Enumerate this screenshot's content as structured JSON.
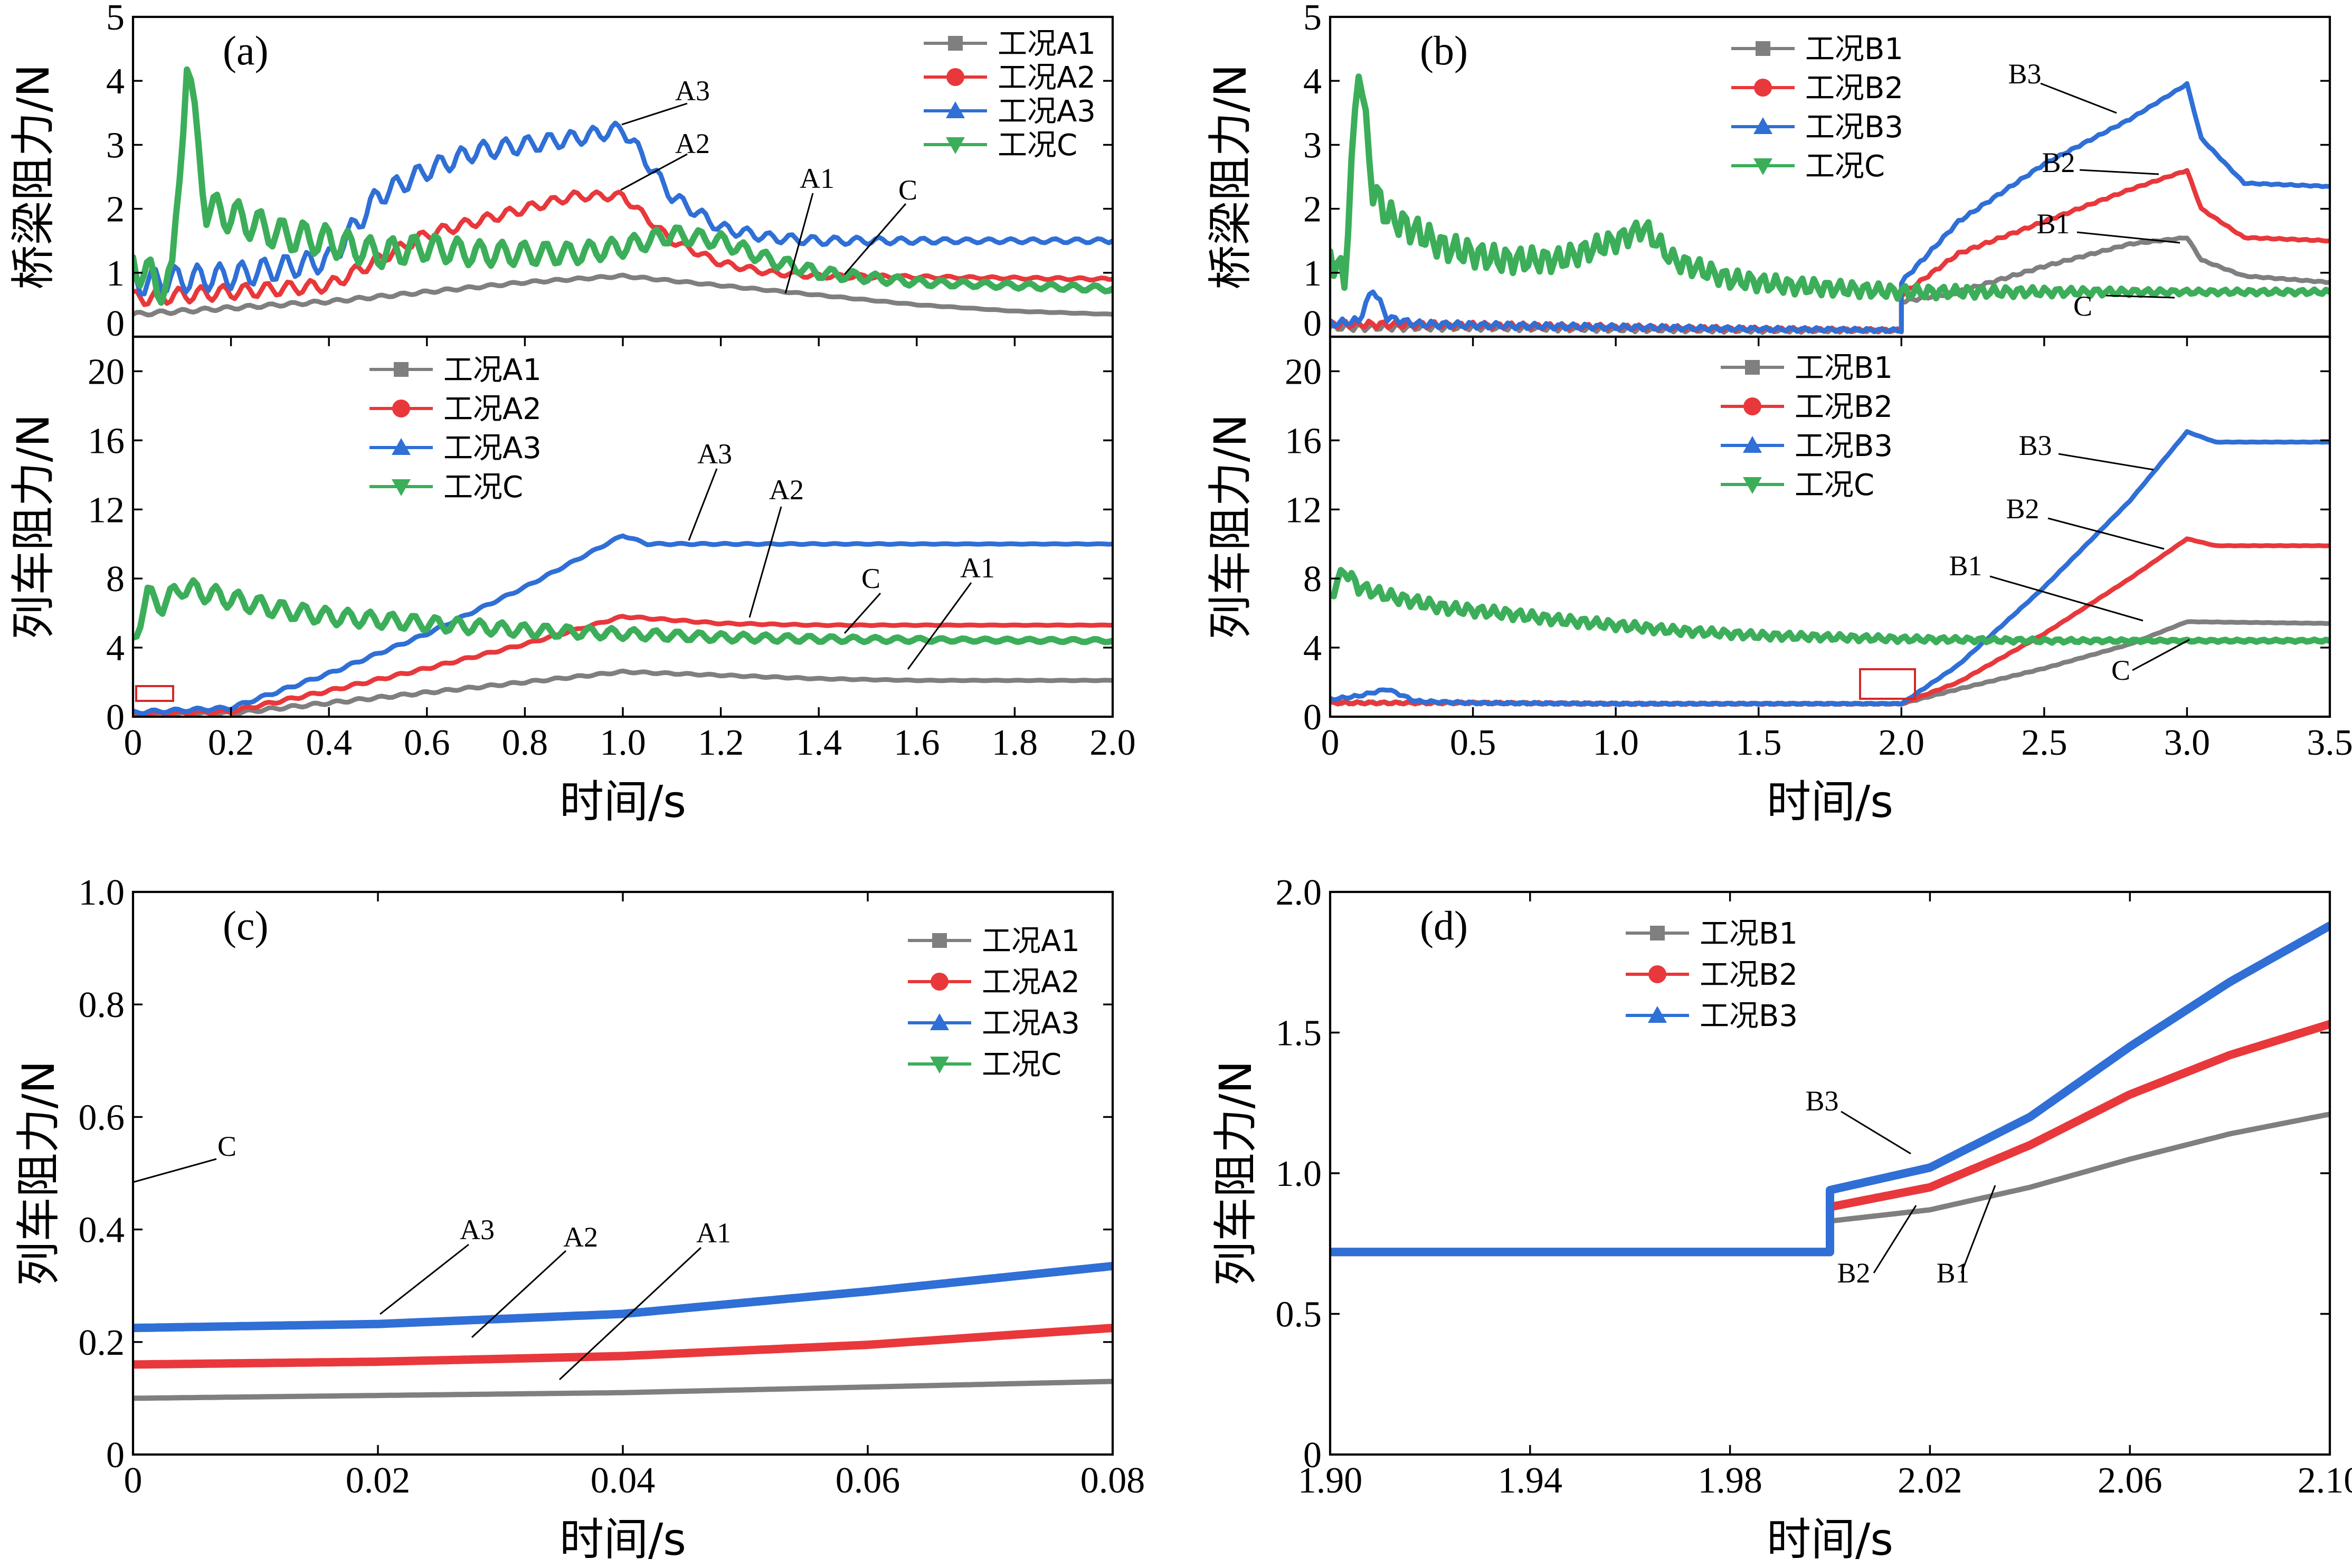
{
  "colors": {
    "A1": "#7f7f7f",
    "A2": "#e8383b",
    "A3": "#2f6fd6",
    "C": "#3cae5a",
    "B1": "#7f7f7f",
    "B2": "#e8383b",
    "B3": "#2f6fd6",
    "zoom_box": "#d62728"
  },
  "chart_data": [
    {
      "id": "a-top",
      "panel_label": "(a)",
      "type": "line",
      "ylabel": "桥梁阻力/N",
      "xlabel": "",
      "xlim": [
        0,
        2.0
      ],
      "ylim": [
        0,
        5
      ],
      "xticks": [],
      "yticks": [
        0,
        1,
        2,
        3,
        4,
        5
      ],
      "legend": [
        "工况A1",
        "工况A2",
        "工况A3",
        "工况C"
      ],
      "legend_position": "top-right",
      "series": [
        {
          "name": "工况A1",
          "key": "A1",
          "x": [
            0,
            0.2,
            0.4,
            0.6,
            0.8,
            1.0,
            1.2,
            1.4,
            1.6,
            1.8,
            2.0
          ],
          "y": [
            0.35,
            0.45,
            0.55,
            0.7,
            0.85,
            0.95,
            0.8,
            0.65,
            0.5,
            0.4,
            0.35
          ]
        },
        {
          "name": "工况A2",
          "key": "A2",
          "x": [
            0,
            0.2,
            0.4,
            0.5,
            0.6,
            0.7,
            0.8,
            0.9,
            1.0,
            1.1,
            1.2,
            1.3,
            1.4,
            2.0
          ],
          "y": [
            0.6,
            0.7,
            0.8,
            1.2,
            1.6,
            1.8,
            2.0,
            2.2,
            2.2,
            1.5,
            1.15,
            1.0,
            0.95,
            0.9
          ]
        },
        {
          "name": "工况A3",
          "key": "A3",
          "x": [
            0,
            0.2,
            0.4,
            0.5,
            0.6,
            0.7,
            0.8,
            0.9,
            1.0,
            1.1,
            1.2,
            1.3,
            1.4,
            2.0
          ],
          "y": [
            0.85,
            0.95,
            1.2,
            2.2,
            2.6,
            2.9,
            3.0,
            3.1,
            3.25,
            2.2,
            1.7,
            1.55,
            1.5,
            1.5
          ]
        },
        {
          "name": "工况C",
          "key": "C",
          "x": [
            0,
            0.05,
            0.08,
            0.11,
            0.15,
            0.2,
            0.3,
            0.4,
            0.5,
            0.6,
            0.7,
            0.8,
            0.9,
            1.0,
            1.1,
            1.2,
            1.3,
            1.4,
            1.6,
            2.0
          ],
          "y": [
            1.2,
            0.8,
            0.9,
            4.3,
            2.0,
            1.9,
            1.6,
            1.5,
            1.3,
            1.4,
            1.3,
            1.3,
            1.3,
            1.4,
            1.6,
            1.5,
            1.2,
            1.0,
            0.85,
            0.75
          ]
        }
      ],
      "annotations": [
        {
          "text": "A3"
        },
        {
          "text": "A2"
        },
        {
          "text": "A1"
        },
        {
          "text": "C"
        }
      ]
    },
    {
      "id": "a-bottom",
      "panel_label": "",
      "type": "line",
      "ylabel": "列车阻力/N",
      "xlabel": "时间/s",
      "xlim": [
        0,
        2.0
      ],
      "ylim": [
        0,
        22
      ],
      "xticks": [
        "0",
        "0.2",
        "0.4",
        "0.6",
        "0.8",
        "1.0",
        "1.2",
        "1.4",
        "1.6",
        "1.8",
        "2.0"
      ],
      "yticks": [
        0,
        4,
        8,
        12,
        16,
        20
      ],
      "legend": [
        "工况A1",
        "工况A2",
        "工况A3",
        "工况C"
      ],
      "legend_position": "top-left",
      "zoom_region": {
        "x": [
          0,
          0.08
        ],
        "y": [
          0,
          1.0
        ]
      },
      "series": [
        {
          "name": "工况A1",
          "key": "A1",
          "x": [
            0,
            0.2,
            0.4,
            0.6,
            0.8,
            1.0,
            1.2,
            1.4,
            1.6,
            2.0
          ],
          "y": [
            0.1,
            0.2,
            0.8,
            1.4,
            2.0,
            2.6,
            2.4,
            2.2,
            2.1,
            2.1
          ]
        },
        {
          "name": "工况A2",
          "key": "A2",
          "x": [
            0,
            0.2,
            0.4,
            0.6,
            0.8,
            1.0,
            1.2,
            1.4,
            2.0
          ],
          "y": [
            0.15,
            0.3,
            1.5,
            2.8,
            4.2,
            5.8,
            5.4,
            5.3,
            5.3
          ]
        },
        {
          "name": "工况A3",
          "key": "A3",
          "x": [
            0,
            0.2,
            0.4,
            0.6,
            0.8,
            1.0,
            1.05,
            1.2,
            1.4,
            2.0
          ],
          "y": [
            0.25,
            0.5,
            2.5,
            4.8,
            7.5,
            10.5,
            10.0,
            10.0,
            10.0,
            10.0
          ]
        },
        {
          "name": "工况C",
          "key": "C",
          "x": [
            0,
            0.03,
            0.06,
            0.1,
            0.2,
            0.3,
            0.4,
            0.6,
            0.8,
            1.0,
            1.2,
            1.4,
            1.6,
            2.0
          ],
          "y": [
            4.5,
            7.0,
            6.5,
            7.5,
            6.8,
            6.2,
            5.8,
            5.4,
            5.0,
            4.8,
            4.6,
            4.5,
            4.45,
            4.4
          ]
        }
      ],
      "annotations": [
        {
          "text": "A3"
        },
        {
          "text": "A2"
        },
        {
          "text": "C"
        },
        {
          "text": "A1"
        }
      ]
    },
    {
      "id": "b-top",
      "panel_label": "(b)",
      "type": "line",
      "ylabel": "桥梁阻力/N",
      "xlabel": "",
      "xlim": [
        0,
        3.5
      ],
      "ylim": [
        0,
        5
      ],
      "xticks": [],
      "yticks": [
        0,
        1,
        2,
        3,
        4,
        5
      ],
      "legend": [
        "工况B1",
        "工况B2",
        "工况B3",
        "工况C"
      ],
      "legend_position": "top-center",
      "series": [
        {
          "name": "工况B1",
          "key": "B1",
          "x": [
            0,
            0.5,
            1.0,
            1.5,
            2.0,
            2.0,
            2.2,
            2.5,
            2.8,
            3.0,
            3.05,
            3.2,
            3.5
          ],
          "y": [
            0.15,
            0.15,
            0.12,
            0.1,
            0.1,
            0.55,
            0.7,
            1.1,
            1.45,
            1.55,
            1.2,
            0.95,
            0.85
          ]
        },
        {
          "name": "工况B2",
          "key": "B2",
          "x": [
            0,
            0.5,
            1.0,
            1.5,
            2.0,
            2.0,
            2.2,
            2.5,
            2.8,
            3.0,
            3.05,
            3.2,
            3.5
          ],
          "y": [
            0.2,
            0.18,
            0.15,
            0.12,
            0.1,
            0.65,
            1.3,
            1.8,
            2.3,
            2.6,
            2.0,
            1.55,
            1.5
          ]
        },
        {
          "name": "工况B3",
          "key": "B3",
          "x": [
            0,
            0.1,
            0.15,
            0.2,
            0.3,
            0.5,
            1.0,
            1.5,
            2.0,
            2.0,
            2.2,
            2.5,
            2.8,
            3.0,
            3.05,
            3.2,
            3.5
          ],
          "y": [
            0.2,
            0.25,
            0.75,
            0.3,
            0.2,
            0.18,
            0.15,
            0.12,
            0.1,
            0.85,
            1.8,
            2.7,
            3.4,
            3.95,
            3.1,
            2.4,
            2.35
          ]
        },
        {
          "name": "工况C",
          "key": "C",
          "x": [
            0,
            0.05,
            0.1,
            0.15,
            0.2,
            0.4,
            0.6,
            0.8,
            1.0,
            1.1,
            1.2,
            1.4,
            1.6,
            1.8,
            2.0,
            2.5,
            3.0,
            3.5
          ],
          "y": [
            1.3,
            0.9,
            4.3,
            2.3,
            1.9,
            1.4,
            1.2,
            1.2,
            1.5,
            1.7,
            1.2,
            0.9,
            0.8,
            0.75,
            0.7,
            0.7,
            0.7,
            0.7
          ]
        }
      ],
      "annotations": [
        {
          "text": "B3"
        },
        {
          "text": "B2"
        },
        {
          "text": "B1"
        },
        {
          "text": "C"
        }
      ]
    },
    {
      "id": "b-bottom",
      "panel_label": "",
      "type": "line",
      "ylabel": "列车阻力/N",
      "xlabel": "时间/s",
      "xlim": [
        0,
        3.5
      ],
      "ylim": [
        0,
        22
      ],
      "xticks": [
        "0",
        "0.5",
        "1.0",
        "1.5",
        "2.0",
        "2.5",
        "3.0",
        "3.5"
      ],
      "yticks": [
        0,
        4,
        8,
        12,
        16,
        20
      ],
      "legend": [
        "工况B1",
        "工况B2",
        "工况B3",
        "工况C"
      ],
      "legend_position": "top-center",
      "zoom_region": {
        "x": [
          1.9,
          2.1
        ],
        "y": [
          0,
          2.0
        ]
      },
      "series": [
        {
          "name": "工况B1",
          "key": "B1",
          "x": [
            0,
            0.5,
            1.0,
            1.5,
            2.0,
            2.2,
            2.5,
            2.8,
            3.0,
            3.5
          ],
          "y": [
            0.8,
            0.8,
            0.75,
            0.75,
            0.75,
            1.6,
            2.8,
            4.2,
            5.5,
            5.4
          ]
        },
        {
          "name": "工况B2",
          "key": "B2",
          "x": [
            0,
            0.5,
            1.0,
            1.5,
            2.0,
            2.2,
            2.5,
            2.8,
            3.0,
            3.1,
            3.5
          ],
          "y": [
            0.8,
            0.8,
            0.75,
            0.75,
            0.75,
            2.0,
            4.8,
            8.0,
            10.3,
            9.9,
            9.9
          ]
        },
        {
          "name": "工况B3",
          "key": "B3",
          "x": [
            0,
            0.1,
            0.2,
            0.3,
            0.5,
            1.0,
            1.5,
            2.0,
            2.2,
            2.5,
            2.8,
            3.0,
            3.1,
            3.5
          ],
          "y": [
            1.0,
            1.2,
            1.6,
            0.9,
            0.8,
            0.75,
            0.75,
            0.75,
            3.0,
            7.5,
            12.5,
            16.5,
            15.9,
            15.9
          ]
        },
        {
          "name": "工况C",
          "key": "C",
          "x": [
            0,
            0.05,
            0.1,
            0.2,
            0.4,
            0.6,
            0.8,
            1.0,
            1.2,
            1.5,
            2.0,
            2.5,
            3.0,
            3.5
          ],
          "y": [
            7.0,
            8.5,
            7.5,
            7.0,
            6.3,
            6.0,
            5.6,
            5.3,
            5.0,
            4.7,
            4.5,
            4.4,
            4.4,
            4.4
          ]
        }
      ],
      "annotations": [
        {
          "text": "B3"
        },
        {
          "text": "B2"
        },
        {
          "text": "B1"
        },
        {
          "text": "C"
        }
      ]
    },
    {
      "id": "c",
      "panel_label": "(c)",
      "type": "line",
      "ylabel": "列车阻力/N",
      "xlabel": "时间/s",
      "xlim": [
        0,
        0.08
      ],
      "ylim": [
        0,
        1.0
      ],
      "xticks": [
        "0",
        "0.02",
        "0.04",
        "0.06",
        "0.08"
      ],
      "yticks": [
        "0",
        "0.2",
        "0.4",
        "0.6",
        "0.8",
        "1.0"
      ],
      "legend": [
        "工况A1",
        "工况A2",
        "工况A3",
        "工况C"
      ],
      "legend_position": "top-right",
      "series": [
        {
          "name": "工况A1",
          "key": "A1",
          "x": [
            0,
            0.02,
            0.04,
            0.06,
            0.08
          ],
          "y": [
            0.1,
            0.105,
            0.11,
            0.12,
            0.13
          ]
        },
        {
          "name": "工况A2",
          "key": "A2",
          "x": [
            0,
            0.02,
            0.04,
            0.06,
            0.08
          ],
          "y": [
            0.16,
            0.165,
            0.175,
            0.195,
            0.225
          ]
        },
        {
          "name": "工况A3",
          "key": "A3",
          "x": [
            0,
            0.02,
            0.04,
            0.06,
            0.08
          ],
          "y": [
            0.225,
            0.232,
            0.25,
            0.29,
            0.335
          ]
        }
      ],
      "annotations": [
        {
          "text": "C"
        },
        {
          "text": "A3"
        },
        {
          "text": "A2"
        },
        {
          "text": "A1"
        }
      ]
    },
    {
      "id": "d",
      "panel_label": "(d)",
      "type": "line",
      "ylabel": "列车阻力/N",
      "xlabel": "时间/s",
      "xlim": [
        1.9,
        2.1
      ],
      "ylim": [
        0,
        2.0
      ],
      "xticks": [
        "1.90",
        "1.94",
        "1.98",
        "2.02",
        "2.06",
        "2.10"
      ],
      "yticks": [
        "0",
        "0.5",
        "1.0",
        "1.5",
        "2.0"
      ],
      "legend": [
        "工况B1",
        "工况B2",
        "工况B3"
      ],
      "legend_position": "top-left",
      "series": [
        {
          "name": "工况B1",
          "key": "B1",
          "x": [
            1.9,
            2.0,
            2.0,
            2.02,
            2.04,
            2.06,
            2.08,
            2.1
          ],
          "y": [
            0.72,
            0.72,
            0.83,
            0.87,
            0.95,
            1.05,
            1.14,
            1.21
          ]
        },
        {
          "name": "工况B2",
          "key": "B2",
          "x": [
            1.9,
            2.0,
            2.0,
            2.02,
            2.04,
            2.06,
            2.08,
            2.1
          ],
          "y": [
            0.72,
            0.72,
            0.88,
            0.95,
            1.1,
            1.28,
            1.42,
            1.53
          ]
        },
        {
          "name": "工况B3",
          "key": "B3",
          "x": [
            1.9,
            2.0,
            2.0,
            2.02,
            2.04,
            2.06,
            2.08,
            2.1
          ],
          "y": [
            0.72,
            0.72,
            0.94,
            1.02,
            1.2,
            1.45,
            1.68,
            1.88
          ]
        }
      ],
      "annotations": [
        {
          "text": "B3"
        },
        {
          "text": "B2"
        },
        {
          "text": "B1"
        }
      ]
    }
  ]
}
